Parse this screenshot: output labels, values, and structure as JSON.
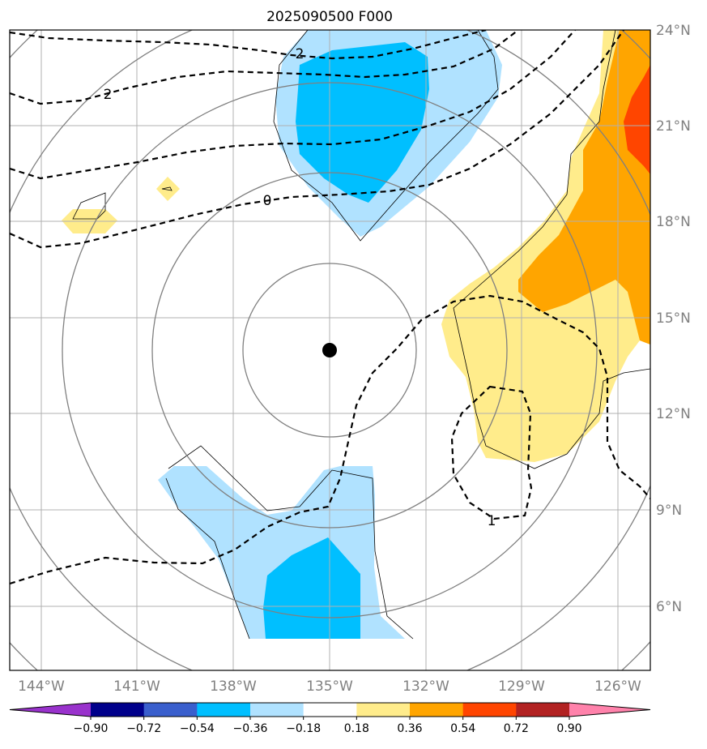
{
  "chart_data": {
    "type": "map",
    "title": "2025090500 F000",
    "lon_range": [
      -145.0,
      -125.0
    ],
    "lat_range": [
      4.0,
      24.0
    ],
    "x_ticks": [
      "144°W",
      "141°W",
      "138°W",
      "135°W",
      "132°W",
      "129°W",
      "126°W"
    ],
    "y_ticks": [
      "6°N",
      "9°N",
      "12°N",
      "15°N",
      "18°N",
      "21°N",
      "24°N"
    ],
    "center_marker": {
      "lon": -135.0,
      "lat": 14.0
    },
    "range_rings_deg": [
      3,
      5.5,
      8.3,
      10.8,
      13.3
    ],
    "contour_labels": [
      "2",
      "2",
      "0",
      "1"
    ],
    "colorbar": {
      "ticks": [
        "−0.90",
        "−0.72",
        "−0.54",
        "−0.36",
        "−0.18",
        "0.18",
        "0.36",
        "0.54",
        "0.72",
        "0.90"
      ],
      "colors": [
        "#9932cc",
        "#00008b",
        "#3a5fcd",
        "#00bfff",
        "#b0e2ff",
        "#ffffff",
        "#ffec8b",
        "#ffa500",
        "#ff4500",
        "#b22222",
        "#ff82ab"
      ]
    },
    "filled_regions": [
      {
        "level": "-0.36 to -0.18",
        "color": "#b0e2ff",
        "area": "north, near 135°W 19-24°N"
      },
      {
        "level": "-0.54 to -0.36",
        "color": "#00bfff",
        "area": "north core"
      },
      {
        "level": "-0.36 to -0.18",
        "color": "#b0e2ff",
        "area": "south, near 136°W 5-10°N"
      },
      {
        "level": "-0.54 to -0.36",
        "color": "#00bfff",
        "area": "south core"
      },
      {
        "level": "0.18 to 0.36",
        "color": "#ffec8b",
        "area": "east, 125-131°W 10-24°N"
      },
      {
        "level": "0.36 to 0.54",
        "color": "#ffa500",
        "area": "east core"
      },
      {
        "level": "0.54 to 0.72",
        "color": "#ff4500",
        "area": "far east edge"
      }
    ]
  }
}
